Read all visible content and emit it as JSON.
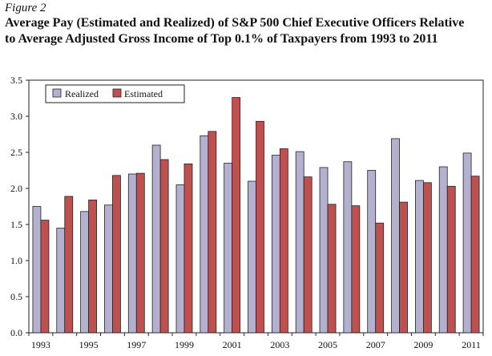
{
  "figure_label": "Figure 2",
  "title_line1": "Average Pay (Estimated and Realized) of S&P 500 Chief Executive Officers Relative",
  "title_line2": "to Average Adjusted Gross Income of Top 0.1% of Taxpayers from 1993 to 2011",
  "colors": {
    "realized": "#b3b1cf",
    "estimated": "#c0504d",
    "stroke": "#222222"
  },
  "chart_data": {
    "type": "bar",
    "categories": [
      "1993",
      "1994",
      "1995",
      "1996",
      "1997",
      "1998",
      "1999",
      "2000",
      "2001",
      "2002",
      "2003",
      "2004",
      "2005",
      "2006",
      "2007",
      "2008",
      "2009",
      "2010",
      "2011"
    ],
    "x_tick_labels": [
      "1993",
      "1995",
      "1997",
      "1999",
      "2001",
      "2003",
      "2005",
      "2007",
      "2009",
      "2011"
    ],
    "series": [
      {
        "name": "Realized",
        "values": [
          1.75,
          1.45,
          1.68,
          1.77,
          2.2,
          2.6,
          2.05,
          2.73,
          2.35,
          2.1,
          2.46,
          2.51,
          2.29,
          2.37,
          2.25,
          2.69,
          2.11,
          2.3,
          2.49
        ]
      },
      {
        "name": "Estimated",
        "values": [
          1.56,
          1.89,
          1.84,
          2.18,
          2.21,
          2.4,
          2.34,
          2.79,
          3.26,
          2.93,
          2.55,
          2.16,
          1.78,
          1.76,
          1.52,
          1.81,
          2.08,
          2.03,
          2.17
        ]
      }
    ],
    "ylim": [
      0,
      3.5
    ],
    "y_ticks": [
      "0.0",
      "0.5",
      "1.0",
      "1.5",
      "2.0",
      "2.5",
      "3.0",
      "3.5"
    ],
    "legend_position": "top-left",
    "grid": false
  }
}
